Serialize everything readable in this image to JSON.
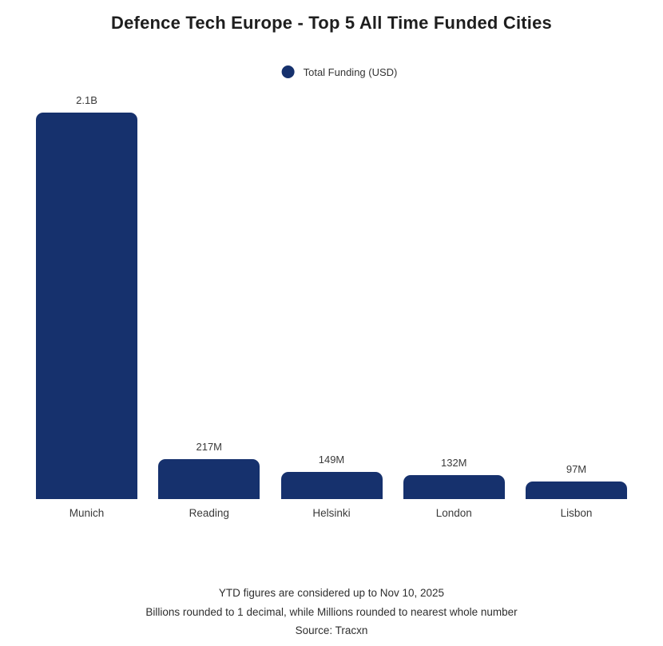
{
  "title": "Defence Tech Europe - Top 5 All Time Funded Cities",
  "legend": {
    "label": "Total Funding (USD)"
  },
  "footer": {
    "line1": "YTD figures are considered up to Nov 10, 2025",
    "line2": "Billions rounded to 1 decimal, while Millions rounded to nearest whole number",
    "line3": "Source: Tracxn"
  },
  "colors": {
    "bar": "#16316d",
    "title": "#1e1e1e",
    "label": "#3a3a3a",
    "background": "#ffffff"
  },
  "chart_data": {
    "type": "bar",
    "title": "Defence Tech Europe - Top 5 All Time Funded Cities",
    "categories": [
      "Munich",
      "Reading",
      "Helsinki",
      "London",
      "Lisbon"
    ],
    "series": [
      {
        "name": "Total Funding (USD)",
        "values": [
          2100,
          217,
          149,
          132,
          97
        ],
        "value_labels": [
          "2.1B",
          "217M",
          "149M",
          "132M",
          "97M"
        ]
      }
    ],
    "unit": "USD millions",
    "xlabel": "",
    "ylabel": "",
    "ylim": [
      0,
      2100
    ],
    "grid": false,
    "axis_lines": false,
    "legend_position": "top-center",
    "bar_color": "#16316d"
  }
}
